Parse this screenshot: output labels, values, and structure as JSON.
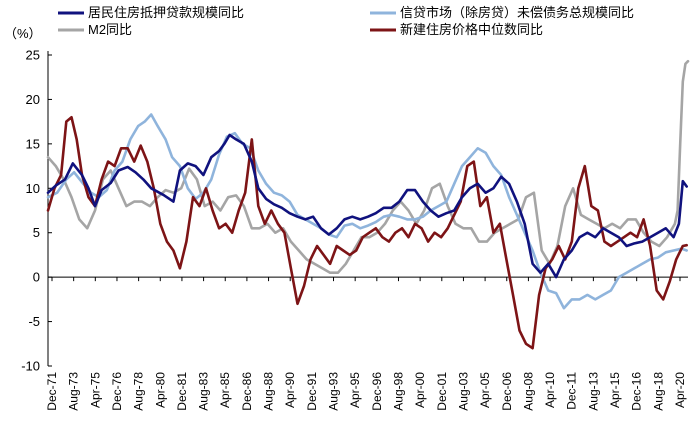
{
  "chart_data": {
    "type": "line",
    "ylabel": "（%）",
    "ylim": [
      -10,
      25
    ],
    "yticks": [
      -10,
      -5,
      0,
      5,
      10,
      15,
      20,
      25
    ],
    "x_labels": [
      "Dec-71",
      "Aug-73",
      "Apr-75",
      "Dec-76",
      "Aug-78",
      "Apr-80",
      "Dec-81",
      "Aug-83",
      "Apr-85",
      "Dec-86",
      "Aug-88",
      "Apr-90",
      "Dec-91",
      "Aug-93",
      "Apr-95",
      "Dec-96",
      "Aug-98",
      "Apr-00",
      "Dec-01",
      "Aug-03",
      "Apr-05",
      "Dec-06",
      "Aug-08",
      "Apr-10",
      "Dec-11",
      "Aug-13",
      "Apr-15",
      "Dec-16",
      "Aug-18",
      "Apr-20"
    ],
    "xlim": [
      1971.9,
      2020.9
    ],
    "grid": false,
    "legend_position": "top",
    "series": [
      {
        "name": "居民住房抵押贷款规模同比",
        "color": "#10127e",
        "x": [
          1971.9,
          1972.5,
          1973.2,
          1973.8,
          1974.5,
          1975.0,
          1975.5,
          1976.0,
          1976.7,
          1977.3,
          1978.0,
          1978.6,
          1979.2,
          1979.8,
          1980.3,
          1980.8,
          1981.5,
          1982.0,
          1982.6,
          1983.2,
          1983.8,
          1984.4,
          1985.0,
          1985.4,
          1985.8,
          1986.3,
          1986.9,
          1987.5,
          1988.0,
          1988.6,
          1989.2,
          1989.8,
          1990.4,
          1991.0,
          1991.6,
          1992.2,
          1992.8,
          1993.4,
          1994.0,
          1994.6,
          1995.2,
          1995.8,
          1996.4,
          1997.0,
          1997.6,
          1998.2,
          1998.8,
          1999.4,
          2000.0,
          2000.6,
          2001.2,
          2001.8,
          2002.4,
          2003.0,
          2003.6,
          2004.2,
          2004.8,
          2005.4,
          2006.0,
          2006.6,
          2007.2,
          2007.8,
          2008.4,
          2009.0,
          2009.6,
          2010.2,
          2010.8,
          2011.4,
          2012.0,
          2012.6,
          2013.2,
          2013.8,
          2014.4,
          2015.0,
          2015.6,
          2016.2,
          2016.8,
          2017.4,
          2018.0,
          2018.6,
          2019.2,
          2019.8,
          2020.2,
          2020.5,
          2020.8
        ],
        "y": [
          9.5,
          10.3,
          11.0,
          12.8,
          11.5,
          10.0,
          8.0,
          9.8,
          10.6,
          12.0,
          12.4,
          11.8,
          11.0,
          10.0,
          9.6,
          9.2,
          8.5,
          12.0,
          12.8,
          12.5,
          11.5,
          13.5,
          14.2,
          15.0,
          16.0,
          15.5,
          15.0,
          13.0,
          10.0,
          8.8,
          8.2,
          7.8,
          7.2,
          6.8,
          6.5,
          6.8,
          5.5,
          4.8,
          5.5,
          6.5,
          6.8,
          6.5,
          6.8,
          7.2,
          7.8,
          7.8,
          8.5,
          9.8,
          9.8,
          8.5,
          7.5,
          6.8,
          7.2,
          7.5,
          9.0,
          10.0,
          10.5,
          9.5,
          10.0,
          11.3,
          10.5,
          8.5,
          6.0,
          1.5,
          0.5,
          1.5,
          0.0,
          2.0,
          3.0,
          4.5,
          5.0,
          4.5,
          5.5,
          5.0,
          4.5,
          3.5,
          3.8,
          4.0,
          4.5,
          5.0,
          5.5,
          4.5,
          6.0,
          10.8,
          10.2
        ]
      },
      {
        "name": "信贷市场（除房贷）未偿债务总规模同比",
        "color": "#8fb4dc",
        "x": [
          1971.9,
          1972.6,
          1973.3,
          1973.9,
          1974.6,
          1975.2,
          1975.8,
          1976.4,
          1977.0,
          1977.6,
          1978.2,
          1978.8,
          1979.3,
          1979.8,
          1980.3,
          1980.9,
          1981.4,
          1982.0,
          1982.6,
          1983.2,
          1983.8,
          1984.4,
          1985.0,
          1985.6,
          1986.2,
          1986.8,
          1987.4,
          1988.0,
          1988.6,
          1989.2,
          1989.8,
          1990.4,
          1991.0,
          1991.6,
          1992.2,
          1992.8,
          1993.4,
          1994.0,
          1994.6,
          1995.2,
          1995.8,
          1996.4,
          1997.0,
          1997.6,
          1998.2,
          1998.8,
          1999.4,
          2000.0,
          2000.6,
          2001.2,
          2001.8,
          2002.4,
          2003.0,
          2003.6,
          2004.2,
          2004.8,
          2005.4,
          2006.0,
          2006.6,
          2007.2,
          2007.8,
          2008.4,
          2009.0,
          2009.6,
          2010.2,
          2010.8,
          2011.4,
          2012.0,
          2012.6,
          2013.2,
          2013.8,
          2014.4,
          2015.0,
          2015.6,
          2016.2,
          2016.8,
          2017.4,
          2018.0,
          2018.6,
          2019.2,
          2019.8,
          2020.4,
          2020.8
        ],
        "y": [
          9.0,
          9.5,
          11.0,
          11.8,
          10.5,
          9.5,
          9.0,
          9.8,
          12.0,
          13.0,
          15.5,
          17.0,
          17.5,
          18.3,
          17.0,
          15.5,
          13.5,
          12.5,
          10.0,
          8.8,
          9.5,
          11.0,
          13.8,
          15.8,
          16.2,
          15.0,
          14.5,
          12.0,
          10.5,
          9.5,
          9.2,
          8.5,
          7.0,
          6.5,
          6.0,
          5.5,
          4.8,
          4.5,
          5.8,
          6.0,
          5.5,
          5.8,
          6.2,
          6.8,
          7.0,
          6.8,
          6.5,
          6.5,
          6.8,
          7.5,
          8.0,
          8.5,
          10.5,
          12.5,
          13.5,
          14.5,
          14.0,
          12.5,
          11.5,
          9.0,
          7.0,
          5.0,
          3.0,
          0.5,
          -1.5,
          -1.8,
          -3.5,
          -2.5,
          -2.5,
          -2.0,
          -2.5,
          -2.0,
          -1.5,
          0.0,
          0.5,
          1.0,
          1.5,
          2.0,
          2.2,
          2.8,
          3.0,
          3.2,
          3.0
        ]
      },
      {
        "name": "M2同比",
        "color": "#a5a5a5",
        "x": [
          1971.9,
          1972.5,
          1973.1,
          1973.7,
          1974.3,
          1974.9,
          1975.5,
          1976.1,
          1976.7,
          1977.3,
          1977.9,
          1978.5,
          1979.1,
          1979.7,
          1980.3,
          1980.9,
          1981.5,
          1982.1,
          1982.7,
          1983.3,
          1983.9,
          1984.5,
          1985.1,
          1985.7,
          1986.3,
          1986.9,
          1987.5,
          1988.1,
          1988.7,
          1989.3,
          1989.9,
          1990.5,
          1991.1,
          1991.7,
          1992.3,
          1992.9,
          1993.5,
          1994.1,
          1994.7,
          1995.3,
          1995.9,
          1996.5,
          1997.1,
          1997.7,
          1998.3,
          1998.9,
          1999.5,
          2000.1,
          2000.7,
          2001.3,
          2001.9,
          2002.5,
          2003.1,
          2003.7,
          2004.3,
          2004.9,
          2005.5,
          2006.1,
          2006.7,
          2007.3,
          2007.9,
          2008.5,
          2009.1,
          2009.7,
          2010.3,
          2010.9,
          2011.5,
          2012.1,
          2012.7,
          2013.3,
          2013.9,
          2014.5,
          2015.1,
          2015.7,
          2016.3,
          2016.9,
          2017.5,
          2018.1,
          2018.7,
          2019.3,
          2019.9,
          2020.1,
          2020.3,
          2020.5,
          2020.7,
          2020.9
        ],
        "y": [
          13.5,
          12.5,
          11.0,
          9.0,
          6.5,
          5.5,
          7.5,
          11.0,
          12.0,
          10.0,
          8.0,
          8.5,
          8.5,
          8.0,
          9.0,
          9.8,
          9.5,
          10.0,
          12.2,
          11.0,
          8.0,
          8.5,
          7.5,
          9.0,
          9.2,
          8.0,
          5.5,
          5.5,
          6.0,
          5.0,
          5.5,
          4.0,
          3.0,
          2.0,
          1.5,
          1.0,
          0.5,
          0.5,
          1.5,
          3.0,
          4.5,
          4.5,
          5.0,
          6.0,
          7.5,
          8.5,
          7.5,
          6.0,
          7.5,
          10.0,
          10.5,
          8.0,
          6.0,
          5.5,
          5.5,
          4.0,
          4.0,
          5.0,
          5.5,
          6.0,
          6.5,
          9.0,
          9.5,
          3.0,
          1.5,
          3.5,
          8.0,
          10.0,
          7.0,
          6.5,
          6.0,
          5.5,
          6.0,
          5.5,
          6.5,
          6.5,
          5.0,
          4.0,
          3.5,
          4.5,
          6.0,
          7.5,
          15.0,
          22.0,
          24.0,
          24.3
        ]
      },
      {
        "name": "新建住房价格中位数同比",
        "color": "#7d1416",
        "x": [
          1971.9,
          1972.4,
          1972.9,
          1973.3,
          1973.7,
          1974.1,
          1974.5,
          1975.0,
          1975.5,
          1976.0,
          1976.5,
          1977.0,
          1977.5,
          1978.0,
          1978.5,
          1979.0,
          1979.5,
          1980.0,
          1980.5,
          1981.0,
          1981.5,
          1982.0,
          1982.5,
          1983.0,
          1983.5,
          1984.0,
          1984.5,
          1985.0,
          1985.5,
          1986.0,
          1986.5,
          1987.0,
          1987.5,
          1988.0,
          1988.5,
          1989.0,
          1989.5,
          1990.0,
          1990.5,
          1991.0,
          1991.5,
          1992.0,
          1992.5,
          1993.0,
          1993.5,
          1994.0,
          1994.5,
          1995.0,
          1995.5,
          1996.0,
          1996.5,
          1997.0,
          1997.5,
          1998.0,
          1998.5,
          1999.0,
          1999.5,
          2000.0,
          2000.5,
          2001.0,
          2001.5,
          2002.0,
          2002.5,
          2003.0,
          2003.5,
          2004.0,
          2004.5,
          2005.0,
          2005.5,
          2006.0,
          2006.5,
          2007.0,
          2007.5,
          2008.0,
          2008.5,
          2009.0,
          2009.5,
          2010.0,
          2010.5,
          2011.0,
          2011.5,
          2012.0,
          2012.5,
          2013.0,
          2013.5,
          2014.0,
          2014.5,
          2015.0,
          2015.5,
          2016.0,
          2016.5,
          2017.0,
          2017.5,
          2018.0,
          2018.5,
          2019.0,
          2019.5,
          2020.0,
          2020.5,
          2020.8
        ],
        "y": [
          7.5,
          10.0,
          11.5,
          17.5,
          18.0,
          15.5,
          11.5,
          9.0,
          8.0,
          11.0,
          13.0,
          12.5,
          14.5,
          14.5,
          13.0,
          14.8,
          13.0,
          10.0,
          6.0,
          4.0,
          3.0,
          1.0,
          4.0,
          9.0,
          8.0,
          10.0,
          7.5,
          5.5,
          6.0,
          5.0,
          7.5,
          9.5,
          15.5,
          8.0,
          6.0,
          7.5,
          6.0,
          5.0,
          1.0,
          -3.0,
          -1.0,
          2.0,
          3.5,
          2.5,
          1.5,
          3.5,
          3.0,
          2.5,
          3.0,
          4.5,
          5.0,
          5.5,
          4.5,
          4.0,
          5.0,
          5.5,
          4.5,
          6.0,
          5.5,
          4.0,
          5.0,
          4.5,
          5.5,
          7.0,
          8.5,
          12.5,
          13.0,
          8.0,
          9.0,
          5.0,
          6.0,
          2.0,
          -2.0,
          -6.0,
          -7.5,
          -8.0,
          -2.0,
          1.0,
          2.0,
          3.5,
          2.0,
          4.0,
          10.0,
          12.5,
          8.0,
          7.5,
          4.0,
          3.5,
          4.0,
          4.5,
          5.0,
          4.5,
          6.5,
          3.5,
          -1.5,
          -2.5,
          -0.5,
          2.0,
          3.5,
          3.6
        ]
      }
    ]
  }
}
